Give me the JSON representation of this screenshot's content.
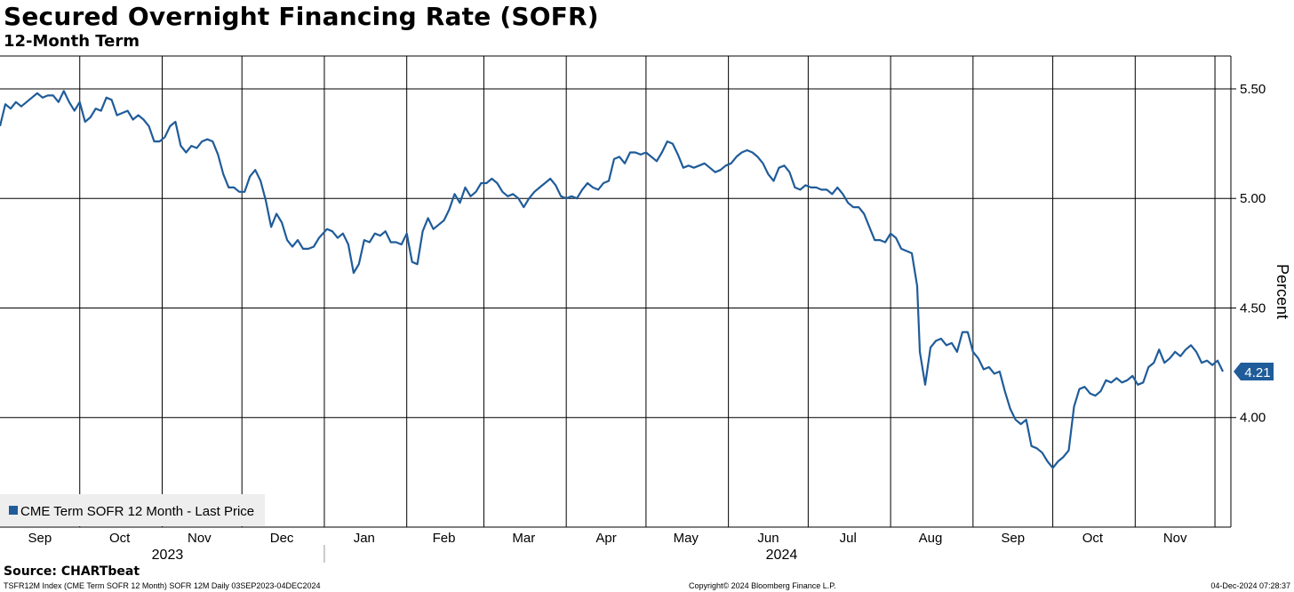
{
  "header": {
    "title": "Secured Overnight Financing Rate (SOFR)",
    "subtitle": "12-Month Term"
  },
  "footer": {
    "source": "Source: CHARTbeat",
    "ticker_info": "TSFR12M Index (CME Term SOFR 12 Month) SOFR 12M  Daily 03SEP2023-04DEC2024",
    "copyright": "Copyright© 2024 Bloomberg Finance L.P.",
    "timestamp": "04-Dec-2024 07:28:37"
  },
  "colors": {
    "line": "#1f5c99",
    "grid": "#000000",
    "legend_bg": "#eeeeee",
    "last_price_bg": "#1f5c99"
  },
  "chart_data": {
    "type": "line",
    "title": "Secured Overnight Financing Rate (SOFR)",
    "subtitle": "12-Month Term",
    "ylabel": "Percent",
    "ylim": [
      3.5,
      5.65
    ],
    "xlim": [
      "2023-09-01",
      "2024-12-07"
    ],
    "yticks": [
      4.0,
      4.5,
      5.0,
      5.5
    ],
    "ytick_labels": [
      "4.00",
      "4.50",
      "5.00",
      "5.50"
    ],
    "y_axis_side": "right",
    "grid": true,
    "legend": {
      "position": "bottom-left",
      "entries": [
        "CME Term SOFR 12 Month - Last Price"
      ]
    },
    "last_value_label": "4.21",
    "x_month_labels": [
      {
        "label": "Sep",
        "date": "2023-09-16"
      },
      {
        "label": "Oct",
        "date": "2023-10-16"
      },
      {
        "label": "Nov",
        "date": "2023-11-15"
      },
      {
        "label": "Dec",
        "date": "2023-12-16"
      },
      {
        "label": "Jan",
        "date": "2024-01-16"
      },
      {
        "label": "Feb",
        "date": "2024-02-15"
      },
      {
        "label": "Mar",
        "date": "2024-03-16"
      },
      {
        "label": "Apr",
        "date": "2024-04-16"
      },
      {
        "label": "May",
        "date": "2024-05-16"
      },
      {
        "label": "Jun",
        "date": "2024-06-16"
      },
      {
        "label": "Jul",
        "date": "2024-07-16"
      },
      {
        "label": "Aug",
        "date": "2024-08-16"
      },
      {
        "label": "Sep",
        "date": "2024-09-16"
      },
      {
        "label": "Oct",
        "date": "2024-10-16"
      },
      {
        "label": "Nov",
        "date": "2024-11-16"
      }
    ],
    "x_year_labels": [
      {
        "label": "2023",
        "date": "2023-11-03"
      },
      {
        "label": "2024",
        "date": "2024-06-21"
      }
    ],
    "x_gridlines": [
      "2023-10-01",
      "2023-11-01",
      "2023-12-01",
      "2024-01-01",
      "2024-02-01",
      "2024-03-01",
      "2024-04-01",
      "2024-05-01",
      "2024-06-01",
      "2024-07-01",
      "2024-08-01",
      "2024-09-01",
      "2024-10-01",
      "2024-11-01",
      "2024-12-01"
    ],
    "year_divider": "2024-01-01",
    "series": [
      {
        "name": "CME Term SOFR 12 Month - Last Price",
        "color": "#1f5c99",
        "points": [
          [
            "2023-09-01",
            5.33
          ],
          [
            "2023-09-03",
            5.43
          ],
          [
            "2023-09-05",
            5.41
          ],
          [
            "2023-09-07",
            5.44
          ],
          [
            "2023-09-09",
            5.42
          ],
          [
            "2023-09-11",
            5.44
          ],
          [
            "2023-09-13",
            5.46
          ],
          [
            "2023-09-15",
            5.48
          ],
          [
            "2023-09-17",
            5.46
          ],
          [
            "2023-09-19",
            5.47
          ],
          [
            "2023-09-21",
            5.47
          ],
          [
            "2023-09-23",
            5.44
          ],
          [
            "2023-09-25",
            5.49
          ],
          [
            "2023-09-27",
            5.44
          ],
          [
            "2023-09-29",
            5.4
          ],
          [
            "2023-10-01",
            5.44
          ],
          [
            "2023-10-03",
            5.35
          ],
          [
            "2023-10-05",
            5.37
          ],
          [
            "2023-10-07",
            5.41
          ],
          [
            "2023-10-09",
            5.4
          ],
          [
            "2023-10-11",
            5.46
          ],
          [
            "2023-10-13",
            5.45
          ],
          [
            "2023-10-15",
            5.38
          ],
          [
            "2023-10-17",
            5.39
          ],
          [
            "2023-10-19",
            5.4
          ],
          [
            "2023-10-21",
            5.36
          ],
          [
            "2023-10-23",
            5.38
          ],
          [
            "2023-10-25",
            5.36
          ],
          [
            "2023-10-27",
            5.33
          ],
          [
            "2023-10-29",
            5.26
          ],
          [
            "2023-10-31",
            5.26
          ],
          [
            "2023-11-02",
            5.28
          ],
          [
            "2023-11-04",
            5.33
          ],
          [
            "2023-11-06",
            5.35
          ],
          [
            "2023-11-08",
            5.24
          ],
          [
            "2023-11-10",
            5.21
          ],
          [
            "2023-11-12",
            5.24
          ],
          [
            "2023-11-14",
            5.23
          ],
          [
            "2023-11-16",
            5.26
          ],
          [
            "2023-11-18",
            5.27
          ],
          [
            "2023-11-20",
            5.26
          ],
          [
            "2023-11-22",
            5.2
          ],
          [
            "2023-11-24",
            5.11
          ],
          [
            "2023-11-26",
            5.05
          ],
          [
            "2023-11-28",
            5.05
          ],
          [
            "2023-11-30",
            5.03
          ],
          [
            "2023-12-02",
            5.03
          ],
          [
            "2023-12-04",
            5.1
          ],
          [
            "2023-12-06",
            5.13
          ],
          [
            "2023-12-08",
            5.08
          ],
          [
            "2023-12-10",
            4.99
          ],
          [
            "2023-12-12",
            4.87
          ],
          [
            "2023-12-14",
            4.93
          ],
          [
            "2023-12-16",
            4.89
          ],
          [
            "2023-12-18",
            4.81
          ],
          [
            "2023-12-20",
            4.78
          ],
          [
            "2023-12-22",
            4.81
          ],
          [
            "2023-12-24",
            4.77
          ],
          [
            "2023-12-26",
            4.77
          ],
          [
            "2023-12-28",
            4.78
          ],
          [
            "2023-12-30",
            4.82
          ],
          [
            "2024-01-02",
            4.86
          ],
          [
            "2024-01-04",
            4.85
          ],
          [
            "2024-01-06",
            4.82
          ],
          [
            "2024-01-08",
            4.84
          ],
          [
            "2024-01-10",
            4.79
          ],
          [
            "2024-01-12",
            4.66
          ],
          [
            "2024-01-14",
            4.7
          ],
          [
            "2024-01-16",
            4.81
          ],
          [
            "2024-01-18",
            4.8
          ],
          [
            "2024-01-20",
            4.84
          ],
          [
            "2024-01-22",
            4.83
          ],
          [
            "2024-01-24",
            4.85
          ],
          [
            "2024-01-26",
            4.8
          ],
          [
            "2024-01-28",
            4.8
          ],
          [
            "2024-01-30",
            4.79
          ],
          [
            "2024-02-01",
            4.84
          ],
          [
            "2024-02-03",
            4.71
          ],
          [
            "2024-02-05",
            4.7
          ],
          [
            "2024-02-07",
            4.85
          ],
          [
            "2024-02-09",
            4.91
          ],
          [
            "2024-02-11",
            4.86
          ],
          [
            "2024-02-13",
            4.88
          ],
          [
            "2024-02-15",
            4.9
          ],
          [
            "2024-02-17",
            4.95
          ],
          [
            "2024-02-19",
            5.02
          ],
          [
            "2024-02-21",
            4.98
          ],
          [
            "2024-02-23",
            5.05
          ],
          [
            "2024-02-25",
            5.01
          ],
          [
            "2024-02-27",
            5.03
          ],
          [
            "2024-02-29",
            5.07
          ],
          [
            "2024-03-02",
            5.07
          ],
          [
            "2024-03-04",
            5.09
          ],
          [
            "2024-03-06",
            5.07
          ],
          [
            "2024-03-08",
            5.03
          ],
          [
            "2024-03-10",
            5.01
          ],
          [
            "2024-03-12",
            5.02
          ],
          [
            "2024-03-14",
            5.0
          ],
          [
            "2024-03-16",
            4.96
          ],
          [
            "2024-03-18",
            5.0
          ],
          [
            "2024-03-20",
            5.03
          ],
          [
            "2024-03-22",
            5.05
          ],
          [
            "2024-03-24",
            5.07
          ],
          [
            "2024-03-26",
            5.09
          ],
          [
            "2024-03-28",
            5.06
          ],
          [
            "2024-03-30",
            5.01
          ],
          [
            "2024-04-01",
            5.0
          ],
          [
            "2024-04-03",
            5.01
          ],
          [
            "2024-04-05",
            5.0
          ],
          [
            "2024-04-07",
            5.04
          ],
          [
            "2024-04-09",
            5.07
          ],
          [
            "2024-04-11",
            5.05
          ],
          [
            "2024-04-13",
            5.04
          ],
          [
            "2024-04-15",
            5.07
          ],
          [
            "2024-04-17",
            5.08
          ],
          [
            "2024-04-19",
            5.18
          ],
          [
            "2024-04-21",
            5.19
          ],
          [
            "2024-04-23",
            5.16
          ],
          [
            "2024-04-25",
            5.21
          ],
          [
            "2024-04-27",
            5.21
          ],
          [
            "2024-04-29",
            5.2
          ],
          [
            "2024-05-01",
            5.21
          ],
          [
            "2024-05-03",
            5.19
          ],
          [
            "2024-05-05",
            5.17
          ],
          [
            "2024-05-07",
            5.21
          ],
          [
            "2024-05-09",
            5.26
          ],
          [
            "2024-05-11",
            5.25
          ],
          [
            "2024-05-13",
            5.2
          ],
          [
            "2024-05-15",
            5.14
          ],
          [
            "2024-05-17",
            5.15
          ],
          [
            "2024-05-19",
            5.14
          ],
          [
            "2024-05-21",
            5.15
          ],
          [
            "2024-05-23",
            5.16
          ],
          [
            "2024-05-25",
            5.14
          ],
          [
            "2024-05-27",
            5.12
          ],
          [
            "2024-05-29",
            5.13
          ],
          [
            "2024-05-31",
            5.15
          ],
          [
            "2024-06-02",
            5.16
          ],
          [
            "2024-06-04",
            5.19
          ],
          [
            "2024-06-06",
            5.21
          ],
          [
            "2024-06-08",
            5.22
          ],
          [
            "2024-06-10",
            5.21
          ],
          [
            "2024-06-12",
            5.19
          ],
          [
            "2024-06-14",
            5.16
          ],
          [
            "2024-06-16",
            5.11
          ],
          [
            "2024-06-18",
            5.08
          ],
          [
            "2024-06-20",
            5.14
          ],
          [
            "2024-06-22",
            5.15
          ],
          [
            "2024-06-24",
            5.12
          ],
          [
            "2024-06-26",
            5.05
          ],
          [
            "2024-06-28",
            5.04
          ],
          [
            "2024-06-30",
            5.06
          ],
          [
            "2024-07-02",
            5.05
          ],
          [
            "2024-07-04",
            5.05
          ],
          [
            "2024-07-06",
            5.04
          ],
          [
            "2024-07-08",
            5.04
          ],
          [
            "2024-07-10",
            5.02
          ],
          [
            "2024-07-12",
            5.05
          ],
          [
            "2024-07-14",
            5.02
          ],
          [
            "2024-07-16",
            4.98
          ],
          [
            "2024-07-18",
            4.96
          ],
          [
            "2024-07-20",
            4.96
          ],
          [
            "2024-07-22",
            4.93
          ],
          [
            "2024-07-24",
            4.87
          ],
          [
            "2024-07-26",
            4.81
          ],
          [
            "2024-07-28",
            4.81
          ],
          [
            "2024-07-30",
            4.8
          ],
          [
            "2024-08-01",
            4.84
          ],
          [
            "2024-08-03",
            4.82
          ],
          [
            "2024-08-05",
            4.77
          ],
          [
            "2024-08-07",
            4.76
          ],
          [
            "2024-08-09",
            4.75
          ],
          [
            "2024-08-11",
            4.6
          ],
          [
            "2024-08-12",
            4.3
          ],
          [
            "2024-08-14",
            4.15
          ],
          [
            "2024-08-16",
            4.32
          ],
          [
            "2024-08-18",
            4.35
          ],
          [
            "2024-08-20",
            4.36
          ],
          [
            "2024-08-22",
            4.33
          ],
          [
            "2024-08-24",
            4.34
          ],
          [
            "2024-08-26",
            4.3
          ],
          [
            "2024-08-28",
            4.39
          ],
          [
            "2024-08-30",
            4.39
          ],
          [
            "2024-09-01",
            4.3
          ],
          [
            "2024-09-03",
            4.27
          ],
          [
            "2024-09-05",
            4.22
          ],
          [
            "2024-09-07",
            4.23
          ],
          [
            "2024-09-09",
            4.2
          ],
          [
            "2024-09-11",
            4.21
          ],
          [
            "2024-09-13",
            4.12
          ],
          [
            "2024-09-15",
            4.04
          ],
          [
            "2024-09-17",
            3.99
          ],
          [
            "2024-09-19",
            3.97
          ],
          [
            "2024-09-21",
            3.99
          ],
          [
            "2024-09-23",
            3.87
          ],
          [
            "2024-09-25",
            3.86
          ],
          [
            "2024-09-27",
            3.84
          ],
          [
            "2024-09-29",
            3.8
          ],
          [
            "2024-10-01",
            3.77
          ],
          [
            "2024-10-03",
            3.8
          ],
          [
            "2024-10-05",
            3.82
          ],
          [
            "2024-10-07",
            3.85
          ],
          [
            "2024-10-09",
            4.05
          ],
          [
            "2024-10-11",
            4.13
          ],
          [
            "2024-10-13",
            4.14
          ],
          [
            "2024-10-15",
            4.11
          ],
          [
            "2024-10-17",
            4.1
          ],
          [
            "2024-10-19",
            4.12
          ],
          [
            "2024-10-21",
            4.17
          ],
          [
            "2024-10-23",
            4.16
          ],
          [
            "2024-10-25",
            4.18
          ],
          [
            "2024-10-27",
            4.16
          ],
          [
            "2024-10-29",
            4.17
          ],
          [
            "2024-10-31",
            4.19
          ],
          [
            "2024-11-02",
            4.15
          ],
          [
            "2024-11-04",
            4.16
          ],
          [
            "2024-11-06",
            4.23
          ],
          [
            "2024-11-08",
            4.25
          ],
          [
            "2024-11-10",
            4.31
          ],
          [
            "2024-11-12",
            4.25
          ],
          [
            "2024-11-14",
            4.27
          ],
          [
            "2024-11-16",
            4.3
          ],
          [
            "2024-11-18",
            4.28
          ],
          [
            "2024-11-20",
            4.31
          ],
          [
            "2024-11-22",
            4.33
          ],
          [
            "2024-11-24",
            4.3
          ],
          [
            "2024-11-26",
            4.25
          ],
          [
            "2024-11-28",
            4.26
          ],
          [
            "2024-11-30",
            4.24
          ],
          [
            "2024-12-02",
            4.26
          ],
          [
            "2024-12-04",
            4.21
          ]
        ]
      }
    ]
  }
}
